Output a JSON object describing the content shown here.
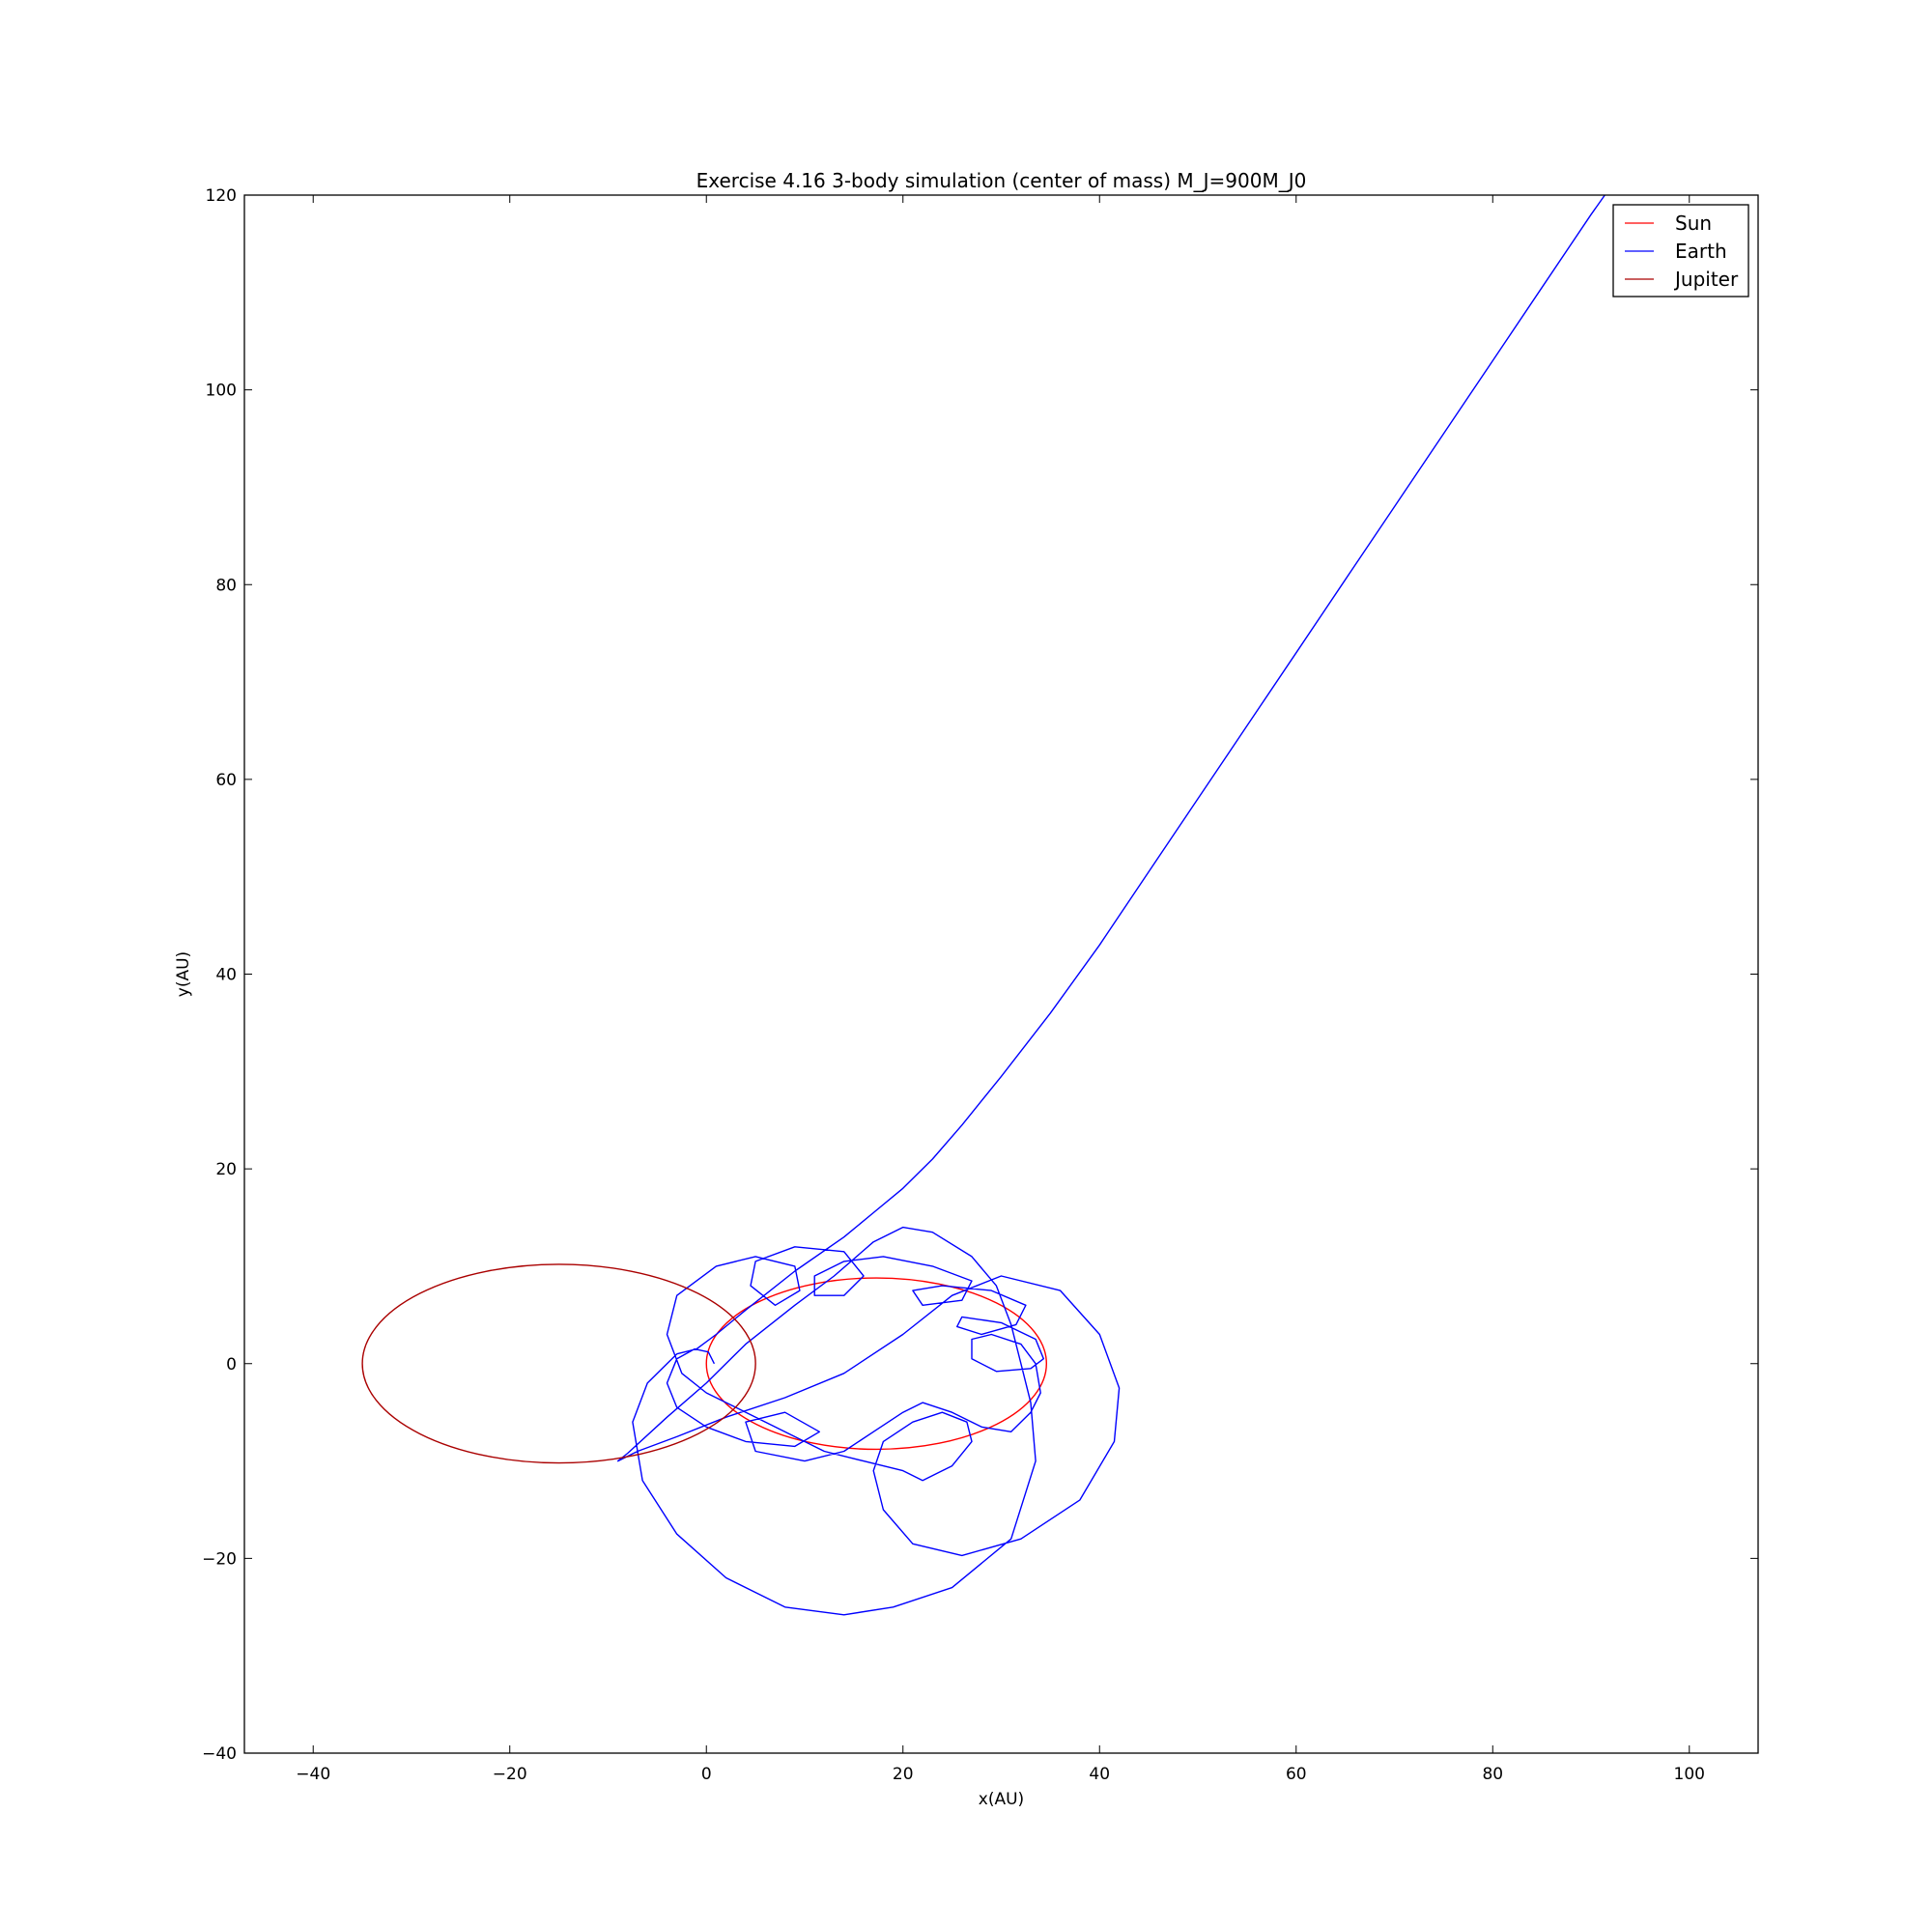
{
  "chart_data": {
    "type": "line",
    "title": "Exercise 4.16 3-body simulation (center of mass) M_J=900M_J0",
    "xlabel": "x(AU)",
    "ylabel": "y(AU)",
    "xlim": [
      -47,
      107
    ],
    "ylim": [
      -40,
      120
    ],
    "xticks": [
      -40,
      -20,
      0,
      20,
      40,
      60,
      80,
      100
    ],
    "yticks": [
      -40,
      -20,
      0,
      20,
      40,
      60,
      80,
      100,
      120
    ],
    "xtick_labels": [
      "−40",
      "−20",
      "0",
      "20",
      "40",
      "60",
      "80",
      "100"
    ],
    "ytick_labels": [
      "−40",
      "−20",
      "0",
      "20",
      "40",
      "60",
      "80",
      "100",
      "120"
    ],
    "grid": false,
    "legend_position": "top-right",
    "series": [
      {
        "name": "Sun",
        "color": "#ff0000",
        "shape": "ellipse",
        "center": [
          17.3,
          0
        ],
        "radii": [
          17.3,
          8.8
        ]
      },
      {
        "name": "Earth",
        "color": "#0000ff",
        "shape": "polyline",
        "points": [
          [
            0.8,
            0
          ],
          [
            0.2,
            1.2
          ],
          [
            -1.2,
            1.5
          ],
          [
            -3,
            0.5
          ],
          [
            -4,
            -2
          ],
          [
            -3,
            -4.5
          ],
          [
            0,
            -6.5
          ],
          [
            4,
            -8
          ],
          [
            9,
            -8.5
          ],
          [
            11.5,
            -7
          ],
          [
            8,
            -5
          ],
          [
            4,
            -6
          ],
          [
            5,
            -9
          ],
          [
            10,
            -10
          ],
          [
            14,
            -9
          ],
          [
            17,
            -7
          ],
          [
            20,
            -5
          ],
          [
            22,
            -4
          ],
          [
            25,
            -5
          ],
          [
            28,
            -6.5
          ],
          [
            31,
            -7
          ],
          [
            33,
            -5
          ],
          [
            34,
            -3
          ],
          [
            33.5,
            0
          ],
          [
            32,
            2
          ],
          [
            29,
            3
          ],
          [
            27,
            2.5
          ],
          [
            27,
            0.5
          ],
          [
            29.5,
            -0.8
          ],
          [
            33,
            -0.5
          ],
          [
            34.3,
            0.5
          ],
          [
            33.5,
            2.5
          ],
          [
            30,
            4.2
          ],
          [
            26,
            4.8
          ],
          [
            25.5,
            3.8
          ],
          [
            28,
            3
          ],
          [
            31.5,
            4
          ],
          [
            32.5,
            6
          ],
          [
            29,
            7.5
          ],
          [
            24,
            8
          ],
          [
            21,
            7.5
          ],
          [
            22,
            6
          ],
          [
            26,
            6.5
          ],
          [
            27,
            8.5
          ],
          [
            23,
            10
          ],
          [
            18,
            11
          ],
          [
            14,
            10.5
          ],
          [
            11,
            9
          ],
          [
            11,
            7
          ],
          [
            14,
            7
          ],
          [
            16,
            9
          ],
          [
            14,
            11.5
          ],
          [
            9,
            12
          ],
          [
            5,
            10.5
          ],
          [
            4.5,
            8
          ],
          [
            7,
            6
          ],
          [
            9.5,
            7.5
          ],
          [
            9,
            10
          ],
          [
            5,
            11
          ],
          [
            1,
            10
          ],
          [
            -3,
            7
          ],
          [
            -4,
            3
          ],
          [
            -2.5,
            -1
          ],
          [
            0,
            -3
          ],
          [
            3,
            -4.5
          ],
          [
            6,
            -6
          ],
          [
            9,
            -7.5
          ],
          [
            12,
            -9
          ],
          [
            16,
            -10
          ],
          [
            20,
            -11
          ],
          [
            22,
            -12
          ],
          [
            25,
            -10.5
          ],
          [
            27,
            -8
          ],
          [
            26.5,
            -6
          ],
          [
            24,
            -5
          ],
          [
            21,
            -6
          ],
          [
            18,
            -8
          ],
          [
            17,
            -11
          ],
          [
            18,
            -15
          ],
          [
            21,
            -18.5
          ],
          [
            26,
            -19.7
          ],
          [
            32,
            -18
          ],
          [
            38,
            -14
          ],
          [
            41.5,
            -8
          ],
          [
            42,
            -2.5
          ],
          [
            40,
            3
          ],
          [
            36,
            7.5
          ],
          [
            30,
            9
          ],
          [
            25,
            7
          ],
          [
            20,
            3
          ],
          [
            14,
            -1
          ],
          [
            8,
            -3.5
          ],
          [
            2,
            -5.5
          ],
          [
            -3,
            -7.5
          ],
          [
            -7,
            -9
          ],
          [
            -9,
            -10
          ],
          [
            -8,
            -9.2
          ],
          [
            -4,
            -5.5
          ],
          [
            0,
            -2
          ],
          [
            4,
            2
          ],
          [
            9,
            6
          ],
          [
            13,
            9
          ],
          [
            17,
            12.5
          ],
          [
            20,
            14
          ],
          [
            23,
            13.5
          ],
          [
            27,
            11
          ],
          [
            29.5,
            8
          ],
          [
            31,
            4
          ],
          [
            32,
            0
          ],
          [
            33,
            -4
          ],
          [
            33.5,
            -10
          ],
          [
            31,
            -18
          ],
          [
            25,
            -23
          ],
          [
            19,
            -25
          ],
          [
            14,
            -25.8
          ],
          [
            8,
            -25
          ],
          [
            2,
            -22
          ],
          [
            -3,
            -17.5
          ],
          [
            -6.5,
            -12
          ],
          [
            -7.5,
            -6
          ],
          [
            -6,
            -2
          ],
          [
            -3,
            1
          ],
          [
            -1,
            1.5
          ],
          [
            1,
            3
          ],
          [
            4,
            5.5
          ],
          [
            9,
            9.5
          ],
          [
            14,
            13
          ],
          [
            17,
            15.5
          ],
          [
            20,
            18
          ],
          [
            23,
            21
          ],
          [
            26,
            24.5
          ],
          [
            30,
            29.5
          ],
          [
            35,
            36
          ],
          [
            40,
            43
          ],
          [
            45,
            50.5
          ],
          [
            50,
            58
          ],
          [
            55,
            65.5
          ],
          [
            60,
            73
          ],
          [
            65,
            80.5
          ],
          [
            70,
            88
          ],
          [
            75,
            95.5
          ],
          [
            80,
            103
          ],
          [
            85,
            110.5
          ],
          [
            90,
            118
          ],
          [
            91.4,
            120
          ]
        ]
      },
      {
        "name": "Jupiter",
        "color": "#aa0000",
        "shape": "ellipse",
        "center": [
          -15,
          0
        ],
        "radii": [
          20,
          10.2
        ]
      }
    ]
  }
}
